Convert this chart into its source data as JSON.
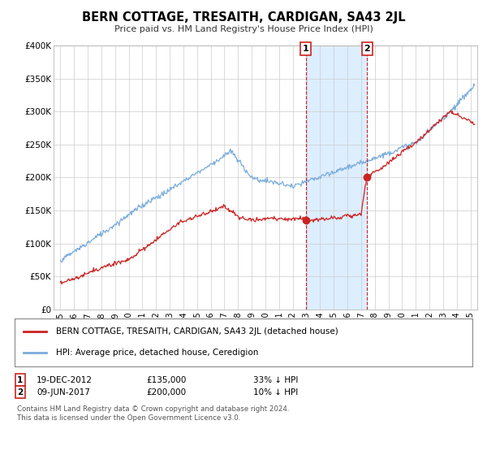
{
  "title": "BERN COTTAGE, TRESAITH, CARDIGAN, SA43 2JL",
  "subtitle": "Price paid vs. HM Land Registry's House Price Index (HPI)",
  "ylabel_ticks": [
    "£0",
    "£50K",
    "£100K",
    "£150K",
    "£200K",
    "£250K",
    "£300K",
    "£350K",
    "£400K"
  ],
  "ytick_values": [
    0,
    50000,
    100000,
    150000,
    200000,
    250000,
    300000,
    350000,
    400000
  ],
  "ylim": [
    0,
    400000
  ],
  "xlim_start": 1994.5,
  "xlim_end": 2025.5,
  "hpi_color": "#7aacdc",
  "price_color": "#cc2222",
  "sale1_date": "19-DEC-2012",
  "sale1_price": 135000,
  "sale1_label": "33% ↓ HPI",
  "sale1_year": 2012.96,
  "sale2_date": "09-JUN-2017",
  "sale2_price": 200000,
  "sale2_label": "10% ↓ HPI",
  "sale2_year": 2017.44,
  "legend_line1": "BERN COTTAGE, TRESAITH, CARDIGAN, SA43 2JL (detached house)",
  "legend_line2": "HPI: Average price, detached house, Ceredigion",
  "footer1": "Contains HM Land Registry data © Crown copyright and database right 2024.",
  "footer2": "This data is licensed under the Open Government Licence v3.0.",
  "highlight_color": "#ddeeff"
}
